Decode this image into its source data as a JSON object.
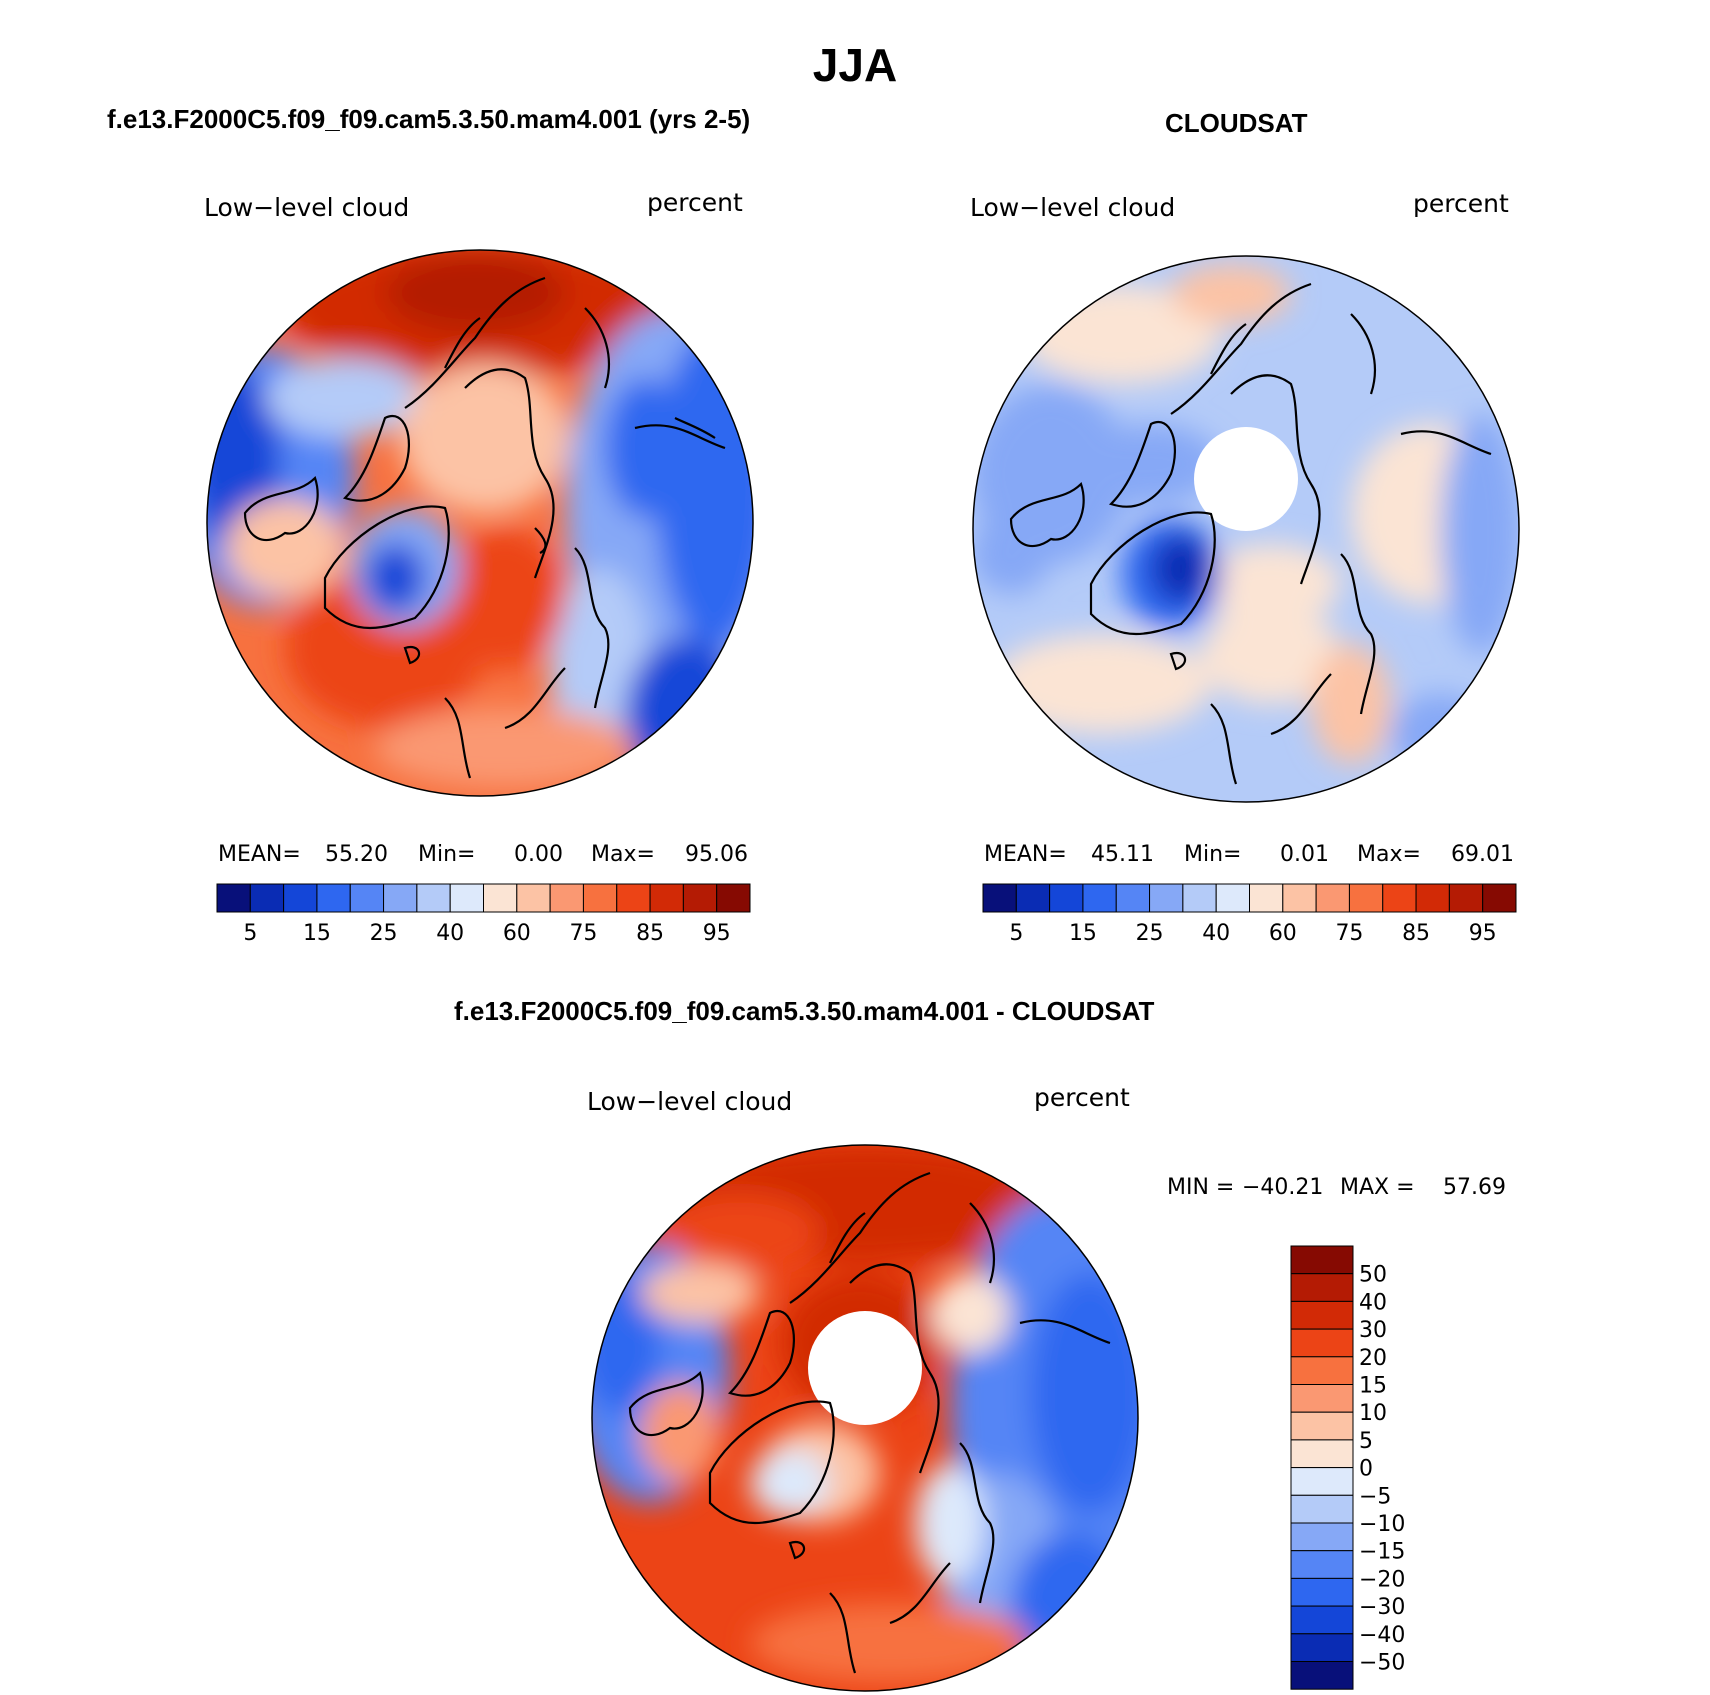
{
  "figure": {
    "title": "JJA"
  },
  "panels": [
    {
      "title": "f.e13.F2000C5.f09_f09.cam5.3.50.mam4.001 (yrs 2-5)",
      "variable": "Low−level cloud",
      "units": "percent",
      "stats": {
        "mean_label": "MEAN=",
        "mean": "55.20",
        "min_label": "Min=",
        "min": "0.00",
        "max_label": "Max=",
        "max": "95.06"
      },
      "colorbar": {
        "tick_labels": [
          "5",
          "15",
          "25",
          "40",
          "60",
          "75",
          "85",
          "95"
        ]
      }
    },
    {
      "title": "CLOUDSAT",
      "variable": "Low−level cloud",
      "units": "percent",
      "stats": {
        "mean_label": "MEAN=",
        "mean": "45.11",
        "min_label": "Min=",
        "min": "0.01",
        "max_label": "Max=",
        "max": "69.01"
      },
      "colorbar": {
        "tick_labels": [
          "5",
          "15",
          "25",
          "40",
          "60",
          "75",
          "85",
          "95"
        ]
      }
    },
    {
      "title": "f.e13.F2000C5.f09_f09.cam5.3.50.mam4.001 - CLOUDSAT",
      "variable": "Low−level cloud",
      "units": "percent",
      "stats": {
        "min_label": "MIN =",
        "min": "−40.21",
        "max_label": "MAX =",
        "max": "57.69"
      },
      "colorbar": {
        "tick_labels": [
          "50",
          "40",
          "30",
          "20",
          "15",
          "10",
          "5",
          "0",
          "−5",
          "−10",
          "−15",
          "−20",
          "−30",
          "−40",
          "−50"
        ]
      }
    }
  ],
  "colors": {
    "absolute_scale": [
      "#08107a",
      "#0a2cb4",
      "#1446d8",
      "#2e67f0",
      "#5585f5",
      "#86a8f6",
      "#b4cbf8",
      "#dde9fb",
      "#fbe4d4",
      "#fcc3a5",
      "#fa9872",
      "#f7713f",
      "#ec4416",
      "#d22a06",
      "#b41b04",
      "#860a02"
    ],
    "difference_scale": [
      "#860a02",
      "#b41b04",
      "#d22a06",
      "#ec4416",
      "#f7713f",
      "#fa9872",
      "#fcc3a5",
      "#fbe4d4",
      "#dde9fb",
      "#b4cbf8",
      "#86a8f6",
      "#5585f5",
      "#2e67f0",
      "#1446d8",
      "#0a2cb4",
      "#08107a"
    ]
  }
}
